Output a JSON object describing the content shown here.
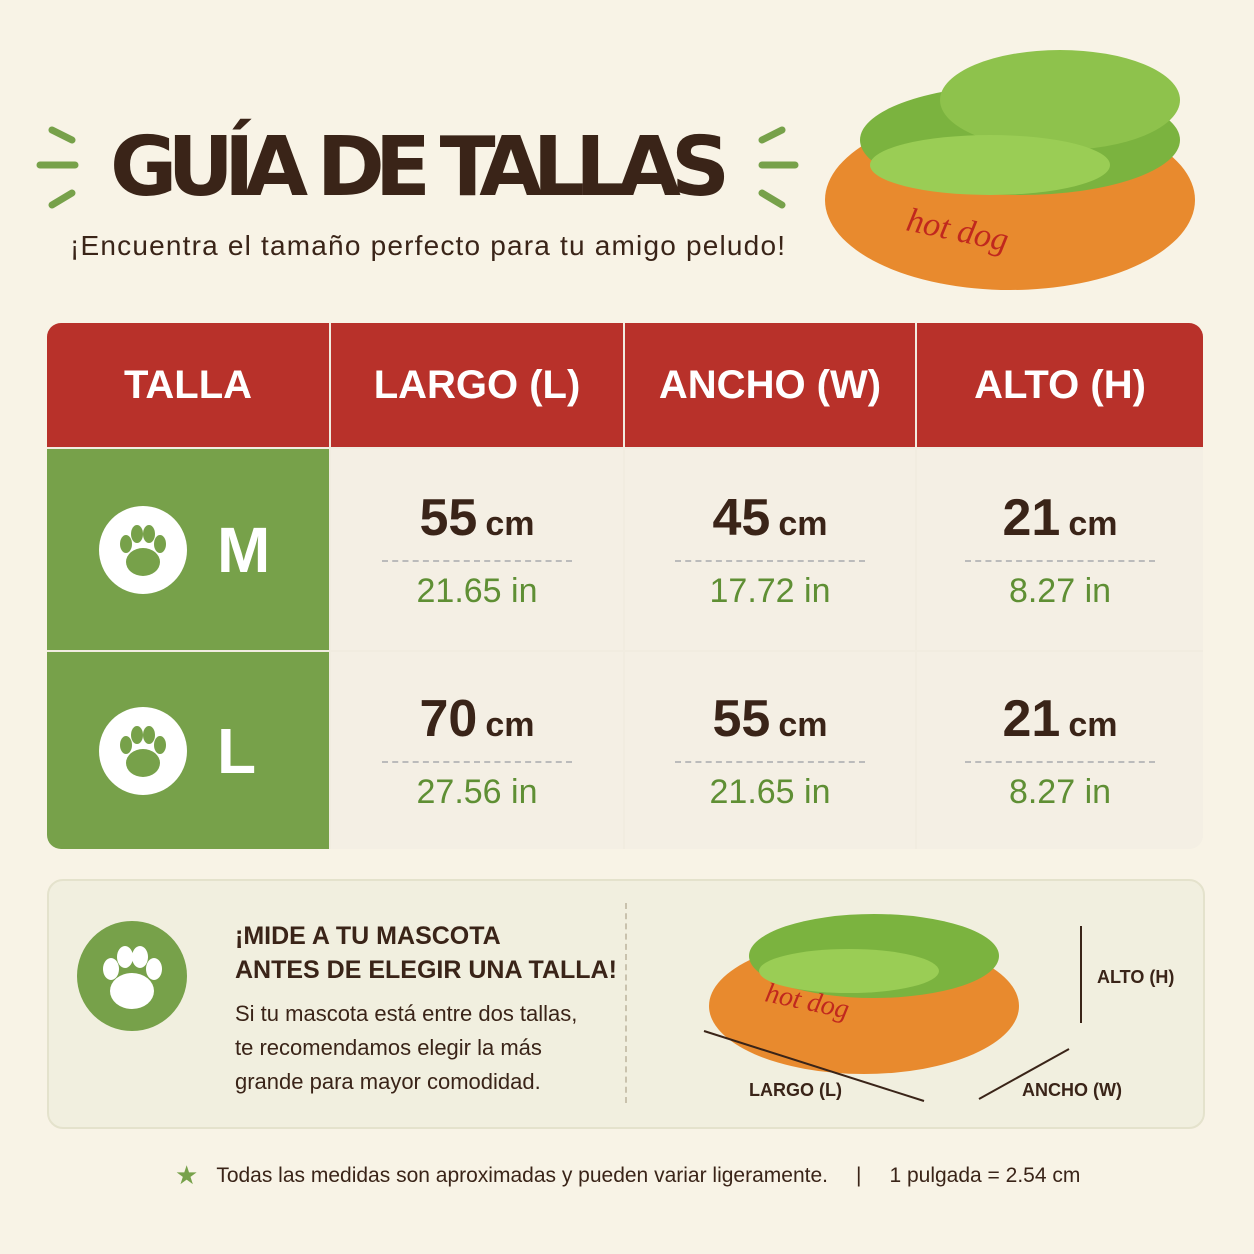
{
  "header": {
    "title": "GUÍA DE TALLAS",
    "subtitle": "¡Encuentra el tamaño perfecto para tu amigo peludo!",
    "product_text": "hot dog"
  },
  "table": {
    "columns": [
      "TALLA",
      "LARGO (L)",
      "ANCHO (W)",
      "ALTO (H)"
    ],
    "rows": [
      {
        "size": "M",
        "cells": [
          {
            "value": "55",
            "unit": "cm",
            "inches": "21.65 in"
          },
          {
            "value": "45",
            "unit": "cm",
            "inches": "17.72 in"
          },
          {
            "value": "21",
            "unit": "cm",
            "inches": "8.27 in"
          }
        ]
      },
      {
        "size": "L",
        "cells": [
          {
            "value": "70",
            "unit": "cm",
            "inches": "27.56 in"
          },
          {
            "value": "55",
            "unit": "cm",
            "inches": "21.65 in"
          },
          {
            "value": "21",
            "unit": "cm",
            "inches": "8.27 in"
          }
        ]
      }
    ]
  },
  "tip": {
    "title_line1": "¡MIDE A TU MASCOTA",
    "title_line2": "ANTES DE ELEGIR UNA TALLA!",
    "text": "Si tu mascota está entre dos tallas, te recomendamos elegir la más grande para mayor comodidad.",
    "dimension_labels": {
      "height": "ALTO (H)",
      "length": "LARGO (L)",
      "width": "ANCHO (W)"
    },
    "product_text": "hot dog"
  },
  "footer": {
    "note": "Todas las medidas son aproximadas y pueden variar ligeramente.",
    "conversion": "1 pulgada = 2.54 cm"
  }
}
